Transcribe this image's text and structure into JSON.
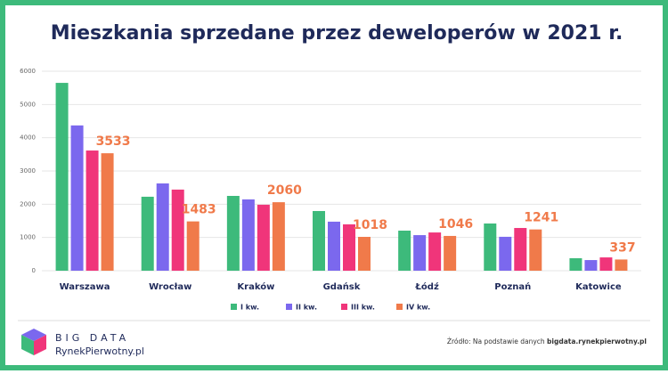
{
  "chart_data": {
    "type": "bar",
    "title": "Mieszkania sprzedane przez deweloperów w 2021 r.",
    "categories": [
      "Warszawa",
      "Wrocław",
      "Kraków",
      "Gdańsk",
      "Łódź",
      "Poznań",
      "Katowice"
    ],
    "series": [
      {
        "name": "I kw.",
        "color": "#3dba7b",
        "values": [
          5650,
          2225,
          2250,
          1795,
          1205,
          1420,
          375
        ]
      },
      {
        "name": "II kw.",
        "color": "#7b68ee",
        "values": [
          4370,
          2625,
          2145,
          1475,
          1070,
          1020,
          320
        ]
      },
      {
        "name": "III kw.",
        "color": "#f0357a",
        "values": [
          3615,
          2440,
          1985,
          1395,
          1150,
          1285,
          400
        ]
      },
      {
        "name": "IV kw.",
        "color": "#f07a4a",
        "values": [
          3533,
          1483,
          2060,
          1018,
          1046,
          1241,
          337
        ],
        "show_labels": true
      }
    ],
    "ylim": [
      0,
      6000
    ],
    "yticks": [
      0,
      1000,
      2000,
      3000,
      4000,
      5000,
      6000
    ],
    "grid": true
  },
  "footer": {
    "logo_line1": "BIG DATA",
    "logo_line2": "RynekPierwotny.pl",
    "source_prefix": "Źródło: Na podstawie danych",
    "source_site": "bigdata.rynekpierwotny.pl"
  }
}
